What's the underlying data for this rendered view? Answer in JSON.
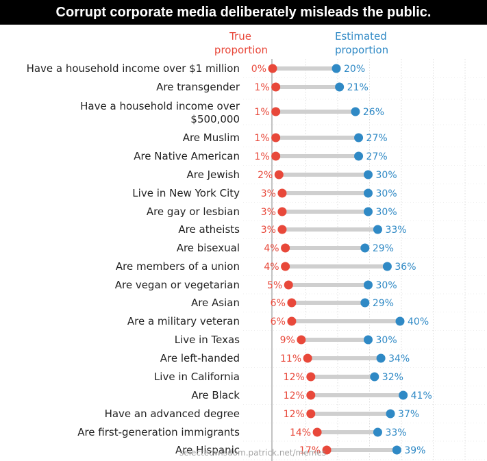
{
  "banner": {
    "title": "Corrupt corporate media deliberately misleads the public."
  },
  "watermark": "selectedwisdom.patrick.net/memes",
  "colors": {
    "true": "#e8483a",
    "estimated": "#2f89c5",
    "connector": "#cfcfcf",
    "grid": "#dcdcdc",
    "axis": "#999999"
  },
  "chart_data": {
    "type": "dot",
    "series": [
      {
        "name": "True proportion",
        "color": "#e8483a"
      },
      {
        "name": "Estimated proportion",
        "color": "#2f89c5"
      }
    ],
    "xlim": [
      0,
      50
    ],
    "grid": true,
    "rows": [
      {
        "label": "Have a household income over $1 million",
        "true": 0,
        "est": 20,
        "true_label": "0%",
        "est_label": "20%"
      },
      {
        "label": "Are transgender",
        "true": 1,
        "est": 21,
        "true_label": "1%",
        "est_label": "21%"
      },
      {
        "label": "Have a household income over $500,000",
        "true": 1,
        "est": 26,
        "true_label": "1%",
        "est_label": "26%"
      },
      {
        "label": "Are Muslim",
        "true": 1,
        "est": 27,
        "true_label": "1%",
        "est_label": "27%"
      },
      {
        "label": "Are Native American",
        "true": 1,
        "est": 27,
        "true_label": "1%",
        "est_label": "27%"
      },
      {
        "label": "Are Jewish",
        "true": 2,
        "est": 30,
        "true_label": "2%",
        "est_label": "30%"
      },
      {
        "label": "Live in New York City",
        "true": 3,
        "est": 30,
        "true_label": "3%",
        "est_label": "30%"
      },
      {
        "label": "Are gay or lesbian",
        "true": 3,
        "est": 30,
        "true_label": "3%",
        "est_label": "30%"
      },
      {
        "label": "Are atheists",
        "true": 3,
        "est": 33,
        "true_label": "3%",
        "est_label": "33%"
      },
      {
        "label": "Are bisexual",
        "true": 4,
        "est": 29,
        "true_label": "4%",
        "est_label": "29%"
      },
      {
        "label": "Are members of a union",
        "true": 4,
        "est": 36,
        "true_label": "4%",
        "est_label": "36%"
      },
      {
        "label": "Are vegan or vegetarian",
        "true": 5,
        "est": 30,
        "true_label": "5%",
        "est_label": "30%"
      },
      {
        "label": "Are Asian",
        "true": 6,
        "est": 29,
        "true_label": "6%",
        "est_label": "29%"
      },
      {
        "label": "Are a military veteran",
        "true": 6,
        "est": 40,
        "true_label": "6%",
        "est_label": "40%"
      },
      {
        "label": "Live in Texas",
        "true": 9,
        "est": 30,
        "true_label": "9%",
        "est_label": "30%"
      },
      {
        "label": "Are left-handed",
        "true": 11,
        "est": 34,
        "true_label": "11%",
        "est_label": "34%"
      },
      {
        "label": "Live in California",
        "true": 12,
        "est": 32,
        "true_label": "12%",
        "est_label": "32%"
      },
      {
        "label": "Are Black",
        "true": 12,
        "est": 41,
        "true_label": "12%",
        "est_label": "41%"
      },
      {
        "label": "Have an advanced degree",
        "true": 12,
        "est": 37,
        "true_label": "12%",
        "est_label": "37%"
      },
      {
        "label": "Are first-generation immigrants",
        "true": 14,
        "est": 33,
        "true_label": "14%",
        "est_label": "33%"
      },
      {
        "label": "Are Hispanic",
        "true": 17,
        "est": 39,
        "true_label": "17%",
        "est_label": "39%"
      }
    ]
  }
}
